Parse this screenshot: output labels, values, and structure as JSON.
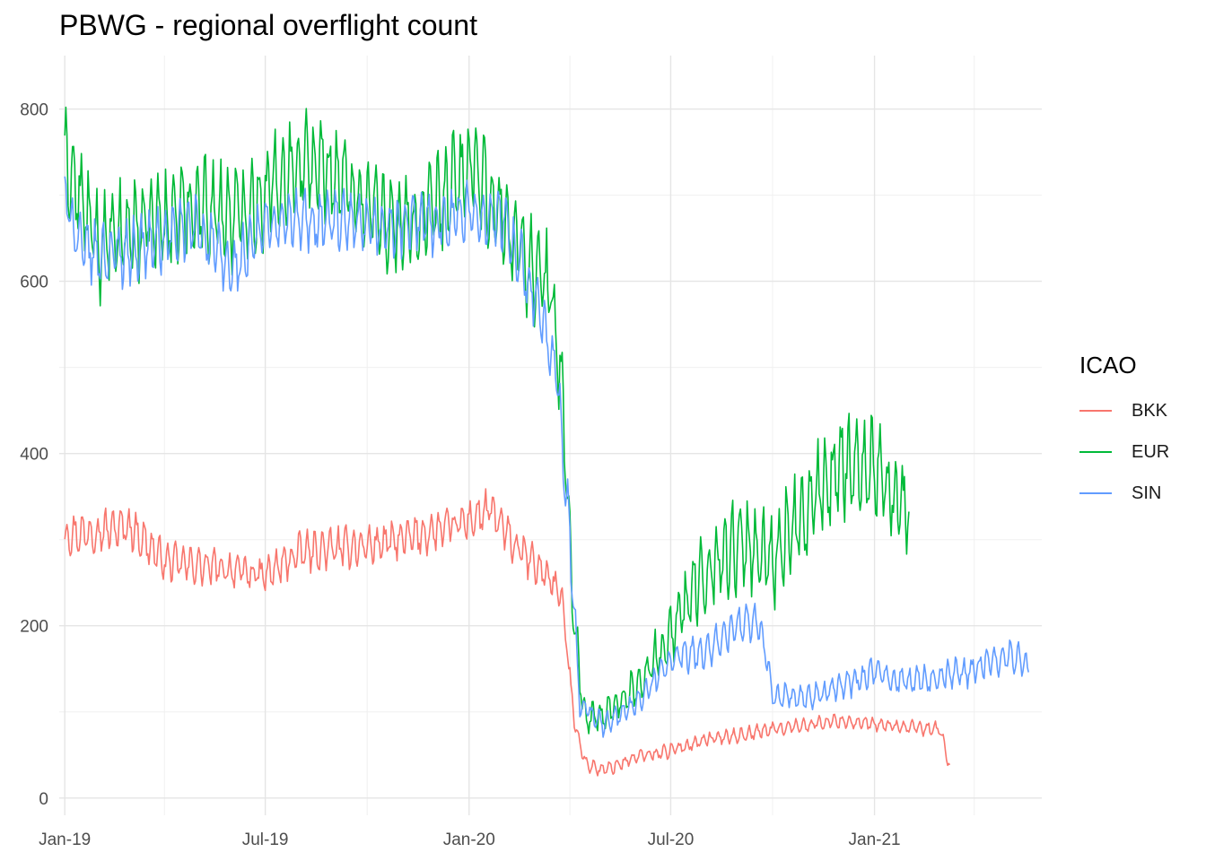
{
  "chart_data": {
    "type": "line",
    "title": "PBWG - regional overflight count",
    "xlabel": "",
    "ylabel": "",
    "x_range": [
      "2018-12-27",
      "2021-06-01"
    ],
    "ylim": [
      -20,
      862
    ],
    "grid": true,
    "x_ticks": [
      {
        "date": "2019-01-01",
        "label": "Jan-19"
      },
      {
        "date": "2019-07-01",
        "label": "Jul-19"
      },
      {
        "date": "2020-01-01",
        "label": "Jan-20"
      },
      {
        "date": "2020-07-01",
        "label": "Jul-20"
      },
      {
        "date": "2021-01-01",
        "label": "Jan-21"
      }
    ],
    "x_minor_ticks": [
      "2019-04-01",
      "2019-10-01",
      "2020-04-01",
      "2020-10-01",
      "2021-04-01"
    ],
    "y_ticks": [
      0,
      200,
      400,
      600,
      800
    ],
    "y_minor_ticks": [
      100,
      300,
      500,
      700
    ],
    "legend": {
      "title": "ICAO",
      "position": "right"
    },
    "series": [
      {
        "name": "BKK",
        "color": "#F8766D",
        "weekly_amplitude": 18,
        "points": [
          [
            "2019-01-01",
            305
          ],
          [
            "2019-02-01",
            310
          ],
          [
            "2019-03-01",
            315
          ],
          [
            "2019-04-01",
            275
          ],
          [
            "2019-05-01",
            270
          ],
          [
            "2019-06-01",
            265
          ],
          [
            "2019-07-01",
            258
          ],
          [
            "2019-08-01",
            285
          ],
          [
            "2019-09-01",
            290
          ],
          [
            "2019-10-01",
            293
          ],
          [
            "2019-11-01",
            300
          ],
          [
            "2019-12-01",
            310
          ],
          [
            "2020-01-01",
            322
          ],
          [
            "2020-01-20",
            335
          ],
          [
            "2020-02-10",
            295
          ],
          [
            "2020-03-01",
            270
          ],
          [
            "2020-03-15",
            255
          ],
          [
            "2020-03-25",
            230
          ],
          [
            "2020-04-05",
            90
          ],
          [
            "2020-04-15",
            40
          ],
          [
            "2020-05-01",
            32
          ],
          [
            "2020-06-01",
            48
          ],
          [
            "2020-07-01",
            55
          ],
          [
            "2020-08-01",
            68
          ],
          [
            "2020-09-01",
            73
          ],
          [
            "2020-10-01",
            80
          ],
          [
            "2020-11-01",
            85
          ],
          [
            "2020-12-01",
            90
          ],
          [
            "2021-01-01",
            85
          ],
          [
            "2021-02-01",
            82
          ],
          [
            "2021-03-01",
            80
          ],
          [
            "2021-03-10",
            35
          ]
        ]
      },
      {
        "name": "EUR",
        "color": "#00BA38",
        "weekly_amplitude": 45,
        "points": [
          [
            "2019-01-01",
            740
          ],
          [
            "2019-02-01",
            640
          ],
          [
            "2019-03-01",
            660
          ],
          [
            "2019-04-01",
            670
          ],
          [
            "2019-05-01",
            690
          ],
          [
            "2019-06-01",
            675
          ],
          [
            "2019-07-01",
            700
          ],
          [
            "2019-08-01",
            740
          ],
          [
            "2019-09-01",
            725
          ],
          [
            "2019-10-01",
            690
          ],
          [
            "2019-11-01",
            660
          ],
          [
            "2019-12-01",
            680
          ],
          [
            "2020-01-01",
            735
          ],
          [
            "2020-02-01",
            670
          ],
          [
            "2020-03-01",
            610
          ],
          [
            "2020-03-15",
            590
          ],
          [
            "2020-03-25",
            470
          ],
          [
            "2020-04-05",
            200
          ],
          [
            "2020-04-15",
            90
          ],
          [
            "2020-05-01",
            95
          ],
          [
            "2020-06-01",
            130
          ],
          [
            "2020-07-01",
            190
          ],
          [
            "2020-08-01",
            265
          ],
          [
            "2020-09-01",
            295
          ],
          [
            "2020-10-01",
            280
          ],
          [
            "2020-11-01",
            330
          ],
          [
            "2020-12-01",
            390
          ],
          [
            "2021-01-01",
            385
          ],
          [
            "2021-01-20",
            345
          ],
          [
            "2021-02-01",
            335
          ]
        ]
      },
      {
        "name": "SIN",
        "color": "#619CFF",
        "weekly_amplitude": 28,
        "points": [
          [
            "2019-01-01",
            700
          ],
          [
            "2019-01-15",
            640
          ],
          [
            "2019-02-01",
            630
          ],
          [
            "2019-03-01",
            635
          ],
          [
            "2019-04-01",
            650
          ],
          [
            "2019-05-01",
            665
          ],
          [
            "2019-06-01",
            610
          ],
          [
            "2019-07-01",
            665
          ],
          [
            "2019-08-01",
            670
          ],
          [
            "2019-09-01",
            670
          ],
          [
            "2019-10-01",
            660
          ],
          [
            "2019-11-01",
            665
          ],
          [
            "2019-12-01",
            670
          ],
          [
            "2020-01-01",
            680
          ],
          [
            "2020-02-01",
            670
          ],
          [
            "2020-03-01",
            580
          ],
          [
            "2020-03-20",
            490
          ],
          [
            "2020-04-01",
            300
          ],
          [
            "2020-04-10",
            110
          ],
          [
            "2020-05-01",
            85
          ],
          [
            "2020-06-01",
            110
          ],
          [
            "2020-07-01",
            160
          ],
          [
            "2020-08-01",
            170
          ],
          [
            "2020-09-01",
            200
          ],
          [
            "2020-09-20",
            200
          ],
          [
            "2020-10-01",
            120
          ],
          [
            "2020-11-01",
            115
          ],
          [
            "2020-12-01",
            130
          ],
          [
            "2021-01-01",
            145
          ],
          [
            "2021-02-01",
            135
          ],
          [
            "2021-03-01",
            140
          ],
          [
            "2021-04-01",
            150
          ],
          [
            "2021-05-01",
            165
          ],
          [
            "2021-05-20",
            155
          ]
        ]
      }
    ]
  }
}
